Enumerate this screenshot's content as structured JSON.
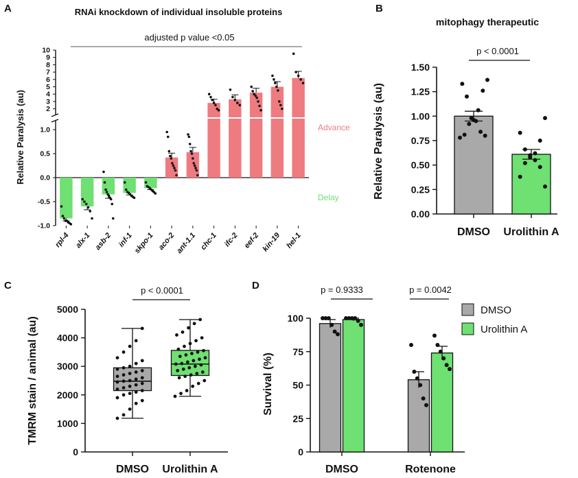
{
  "chart_data": [
    {
      "panel": "A",
      "type": "bar",
      "title": "RNAi knockdown of individual insoluble proteins",
      "ylabel": "Relative Paralysis (au)",
      "annotation": "adjusted p value <0.05",
      "region_labels": {
        "upper": "Advance",
        "lower": "Delay"
      },
      "colors": {
        "advance": "#ee7b80",
        "delay": "#6fe072"
      },
      "ylim_lower": [
        -1.0,
        1.2
      ],
      "ylim_upper": [
        1.5,
        10
      ],
      "yticks_lower": [
        "-1.0",
        "-0.5",
        "0.0",
        "0.5",
        "1.0"
      ],
      "yticks_upper": [
        "2",
        "3",
        "4",
        "5",
        "6",
        "7",
        "8",
        "9",
        "10"
      ],
      "categories": [
        "rpl-4",
        "alx-1",
        "asb-2",
        "inf-1",
        "skpo-1",
        "aco-2",
        "ant-1.1",
        "chc-1",
        "ifc-2",
        "eef-2",
        "kin-19",
        "hel-1"
      ],
      "values": [
        -0.85,
        -0.6,
        -0.35,
        -0.32,
        -0.22,
        0.42,
        0.53,
        2.8,
        3.3,
        4.2,
        5.0,
        6.2
      ],
      "errors": [
        0.05,
        0.07,
        0.08,
        0.04,
        0.03,
        0.09,
        0.1,
        0.5,
        0.6,
        0.6,
        0.7,
        0.9
      ],
      "points": [
        [
          -0.6,
          -0.8,
          -0.85,
          -0.9,
          -0.9,
          -0.93,
          -0.95,
          -0.97
        ],
        [
          -0.45,
          -0.5,
          -0.55,
          -0.62,
          -0.7,
          -0.85
        ],
        [
          0.12,
          -0.1,
          -0.25,
          -0.3,
          -0.35,
          -0.38,
          -0.42,
          -0.45,
          -0.55,
          -0.85
        ],
        [
          -0.1,
          -0.25,
          -0.3,
          -0.32,
          -0.35,
          -0.38,
          -0.4,
          -0.42
        ],
        [
          -0.1,
          -0.18,
          -0.2,
          -0.22,
          -0.25,
          -0.28,
          -0.3,
          -0.33
        ],
        [
          0.95,
          0.85,
          0.55,
          0.45,
          0.4,
          0.3,
          0.25,
          0.2,
          0.15,
          0.05
        ],
        [
          0.9,
          0.85,
          0.7,
          0.55,
          0.5,
          0.4,
          0.3,
          0.25,
          0.2,
          0.15,
          0.05
        ],
        [
          4.0,
          3.6,
          3.2,
          2.8,
          2.5,
          2.0,
          1.8
        ],
        [
          4.6,
          3.6,
          3.2,
          2.8,
          2.5
        ],
        [
          5.0,
          4.4,
          4.0,
          3.8,
          3.5,
          3.0,
          2.4,
          1.8
        ],
        [
          6.5,
          6.0,
          5.5,
          5.0,
          4.5,
          3.0,
          2.5,
          2.0
        ],
        [
          9.5,
          7.0,
          6.5,
          6.0,
          5.5
        ]
      ]
    },
    {
      "panel": "B",
      "type": "bar",
      "title": "mitophagy therapeutic",
      "ylabel": "Relative Paralysis (au)",
      "annotation": "p < 0.0001",
      "categories": [
        "DMSO",
        "Urolithin A"
      ],
      "values": [
        1.0,
        0.61
      ],
      "errors": [
        0.05,
        0.05
      ],
      "colors": [
        "#a9a9a9",
        "#6fe072"
      ],
      "ylim": [
        0,
        1.5
      ],
      "yticks": [
        "0.00",
        "0.25",
        "0.50",
        "0.75",
        "1.00",
        "1.25",
        "1.50"
      ],
      "points": [
        [
          1.37,
          1.33,
          1.26,
          1.2,
          1.06,
          0.98,
          0.96,
          0.95,
          0.92,
          0.84,
          0.81,
          0.8,
          0.78
        ],
        [
          0.98,
          0.83,
          0.75,
          0.66,
          0.62,
          0.6,
          0.58,
          0.55,
          0.52,
          0.48,
          0.38,
          0.28
        ]
      ]
    },
    {
      "panel": "C",
      "type": "box",
      "ylabel": "TMRM stain / animal (au)",
      "annotation": "p < 0.0001",
      "categories": [
        "DMSO",
        "Urolithin A"
      ],
      "colors": [
        "#a9a9a9",
        "#6fe072"
      ],
      "ylim": [
        0,
        5000
      ],
      "yticks": [
        "0",
        "1000",
        "2000",
        "3000",
        "4000",
        "5000"
      ],
      "boxes": [
        {
          "min": 1180,
          "q1": 2150,
          "median": 2480,
          "q3": 2950,
          "max": 4330
        },
        {
          "min": 1950,
          "q1": 2680,
          "median": 3080,
          "q3": 3560,
          "max": 4640
        }
      ],
      "points": [
        [
          1180,
          1300,
          1500,
          1700,
          1800,
          1900,
          2000,
          2050,
          2100,
          2150,
          2200,
          2250,
          2300,
          2350,
          2400,
          2450,
          2480,
          2500,
          2550,
          2600,
          2650,
          2700,
          2750,
          2800,
          2850,
          2900,
          2950,
          3000,
          3100,
          3200,
          3300,
          3500,
          3700,
          3900,
          4330
        ],
        [
          1950,
          2050,
          2150,
          2300,
          2400,
          2500,
          2600,
          2650,
          2700,
          2750,
          2800,
          2850,
          2900,
          2950,
          3000,
          3050,
          3080,
          3100,
          3150,
          3200,
          3250,
          3300,
          3350,
          3400,
          3450,
          3500,
          3550,
          3600,
          3700,
          3800,
          3900,
          4000,
          4100,
          4200,
          4350,
          4500,
          4640
        ]
      ]
    },
    {
      "panel": "D",
      "type": "bar",
      "ylabel": "Survival (%)",
      "groups": [
        "DMSO",
        "Rotenone"
      ],
      "series": [
        {
          "name": "DMSO",
          "values": [
            96,
            54
          ],
          "errors": [
            3,
            6
          ],
          "color": "#a9a9a9",
          "points": [
            [
              100,
              100,
              100,
              95,
              90,
              88
            ],
            [
              80,
              60,
              55,
              50,
              40,
              35
            ]
          ]
        },
        {
          "name": "Urolithin A",
          "values": [
            99,
            74
          ],
          "errors": [
            1,
            5
          ],
          "color": "#6fe072",
          "points": [
            [
              100,
              100,
              100,
              100,
              98,
              95
            ],
            [
              87,
              80,
              75,
              70,
              65,
              62
            ]
          ]
        }
      ],
      "annotations": [
        "p = 0.9333",
        "p = 0.0042"
      ],
      "ylim": [
        0,
        100
      ],
      "yticks": [
        "0",
        "25",
        "50",
        "75",
        "100"
      ],
      "legend_placement": "top-right"
    }
  ]
}
